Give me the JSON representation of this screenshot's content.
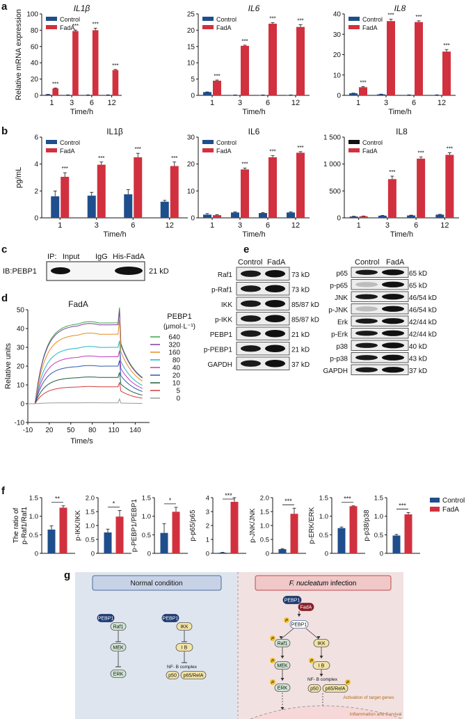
{
  "colors": {
    "control": "#1f4e8c",
    "fada": "#d1313f",
    "black": "#111111"
  },
  "panel_labels": {
    "a": "a",
    "b": "b",
    "c": "c",
    "d": "d",
    "e": "e",
    "f": "f",
    "g": "g"
  },
  "time_label": "Time/h",
  "sig": "***",
  "chart_data": [
    {
      "id": "a1",
      "type": "bar",
      "title": "IL1β",
      "title_italic": true,
      "ylabel": "Relative mRNA expression",
      "xlabel": "Time/h",
      "categories": [
        "1",
        "3",
        "6",
        "12"
      ],
      "ylim": [
        0,
        100
      ],
      "yticks": [
        "0",
        "20",
        "40",
        "60",
        "80",
        "100"
      ],
      "legend": [
        "Control",
        "FadA"
      ],
      "series": [
        {
          "name": "Control",
          "values": [
            1,
            0.5,
            0.5,
            0.5
          ],
          "err": [
            0.2,
            0.1,
            0.1,
            0.1
          ]
        },
        {
          "name": "FadA",
          "values": [
            8.5,
            79,
            80,
            31
          ],
          "err": [
            0.6,
            1.2,
            2.5,
            0.8
          ]
        }
      ],
      "sig": [
        "***",
        "***",
        "***",
        "***"
      ]
    },
    {
      "id": "a2",
      "type": "bar",
      "title": "IL6",
      "title_italic": true,
      "xlabel": "Time/h",
      "categories": [
        "1",
        "3",
        "6",
        "12"
      ],
      "ylim": [
        0,
        25
      ],
      "yticks": [
        "0",
        "5",
        "10",
        "15",
        "20",
        "25"
      ],
      "legend": [
        "Control",
        "FadA"
      ],
      "series": [
        {
          "name": "Control",
          "values": [
            1,
            0.1,
            0.1,
            0.1
          ],
          "err": [
            0.05,
            0.02,
            0.02,
            0.02
          ]
        },
        {
          "name": "FadA",
          "values": [
            4.5,
            15.2,
            22,
            21
          ],
          "err": [
            0.2,
            0.2,
            0.3,
            0.7
          ]
        }
      ],
      "sig": [
        "***",
        "***",
        "***",
        "***"
      ]
    },
    {
      "id": "a3",
      "type": "bar",
      "title": "IL8",
      "title_italic": true,
      "xlabel": "Time/h",
      "categories": [
        "1",
        "3",
        "6",
        "12"
      ],
      "ylim": [
        0,
        40
      ],
      "yticks": [
        "0",
        "10",
        "20",
        "30",
        "40"
      ],
      "legend": [
        "Control",
        "FadA"
      ],
      "series": [
        {
          "name": "Control",
          "values": [
            1,
            0.5,
            0.2,
            0.2
          ],
          "err": [
            0.1,
            0.1,
            0.05,
            0.05
          ]
        },
        {
          "name": "FadA",
          "values": [
            4,
            36.5,
            36,
            21.5
          ],
          "err": [
            0.3,
            0.9,
            0.6,
            1.0
          ]
        }
      ],
      "sig": [
        "***",
        "***",
        "***",
        "***"
      ]
    },
    {
      "id": "b1",
      "type": "bar",
      "title": "IL1β",
      "ylabel": "pg/mL",
      "xlabel": "Time/h",
      "categories": [
        "1",
        "3",
        "6",
        "12"
      ],
      "ylim": [
        0,
        6
      ],
      "yticks": [
        "0",
        "2",
        "4",
        "6"
      ],
      "legend": [
        "Control",
        "FadA"
      ],
      "series": [
        {
          "name": "Control",
          "values": [
            1.6,
            1.65,
            1.75,
            1.2
          ],
          "err": [
            0.4,
            0.25,
            0.35,
            0.1
          ]
        },
        {
          "name": "FadA",
          "values": [
            3.05,
            3.95,
            4.5,
            3.85
          ],
          "err": [
            0.3,
            0.2,
            0.3,
            0.3
          ]
        }
      ],
      "sig": [
        "***",
        "***",
        "***",
        "***"
      ]
    },
    {
      "id": "b2",
      "type": "bar",
      "title": "IL6",
      "xlabel": "Time/h",
      "categories": [
        "1",
        "3",
        "6",
        "12"
      ],
      "ylim": [
        0,
        30
      ],
      "yticks": [
        "0",
        "10",
        "20",
        "30"
      ],
      "legend": [
        "Control",
        "FadA"
      ],
      "series": [
        {
          "name": "Control",
          "values": [
            1.2,
            2.0,
            1.8,
            2.0
          ],
          "err": [
            0.4,
            0.2,
            0.2,
            0.2
          ]
        },
        {
          "name": "FadA",
          "values": [
            1.0,
            18,
            22.5,
            24.2
          ],
          "err": [
            0.2,
            0.5,
            0.6,
            0.4
          ]
        }
      ],
      "sig": [
        "",
        "***",
        "***",
        "***"
      ]
    },
    {
      "id": "b3",
      "type": "bar",
      "title": "IL8",
      "xlabel": "Time/h",
      "categories": [
        "1",
        "3",
        "6",
        "12"
      ],
      "ylim": [
        0,
        1500
      ],
      "yticks": [
        "0",
        "500",
        "1 000",
        "1 500"
      ],
      "legend": [
        "Control",
        "FadA"
      ],
      "legend_black": true,
      "series": [
        {
          "name": "Control",
          "values": [
            25,
            40,
            45,
            60
          ],
          "err": [
            5,
            5,
            5,
            5
          ]
        },
        {
          "name": "FadA",
          "values": [
            30,
            720,
            1100,
            1170
          ],
          "err": [
            5,
            55,
            30,
            40
          ]
        }
      ],
      "sig": [
        "",
        "***",
        "***",
        "***"
      ]
    },
    {
      "id": "d",
      "type": "line",
      "title": "FadA",
      "ylabel": "Relative units",
      "xlabel": "Time/s",
      "xlim": [
        -10,
        160
      ],
      "ylim": [
        -10,
        50
      ],
      "xticks": [
        "-10",
        "20",
        "50",
        "80",
        "110",
        "140"
      ],
      "yticks": [
        "-10",
        "0",
        "10",
        "20",
        "30",
        "40",
        "50"
      ],
      "legend_title": "PEBP1",
      "legend_unit": "(μmol·L⁻¹)",
      "series": [
        {
          "name": "640",
          "plateau": 43,
          "color": "#3aa348"
        },
        {
          "name": "320",
          "plateau": 42,
          "color": "#7a3fa0"
        },
        {
          "name": "160",
          "plateau": 37,
          "color": "#e88a1a"
        },
        {
          "name": "80",
          "plateau": 30,
          "color": "#1fb5c9"
        },
        {
          "name": "40",
          "plateau": 25,
          "color": "#c43ab8"
        },
        {
          "name": "20",
          "plateau": 20,
          "color": "#2f56b0"
        },
        {
          "name": "10",
          "plateau": 14,
          "color": "#1c5c3a"
        },
        {
          "name": "5",
          "plateau": 9,
          "color": "#d43a3a"
        },
        {
          "name": "0",
          "plateau": 0.5,
          "color": "#9a9a9a"
        }
      ]
    },
    {
      "id": "f1",
      "type": "bar",
      "ylabel": "The ratio of p-Raf1/Raf1",
      "ylim": [
        0,
        1.5
      ],
      "yticks": [
        "0",
        "0.5",
        "1.0",
        "1.5"
      ],
      "values": [
        0.64,
        1.23
      ],
      "err": [
        0.1,
        0.05
      ],
      "sig": "**"
    },
    {
      "id": "f2",
      "type": "bar",
      "ylabel": "p-IKK/IKK",
      "ylim": [
        0,
        2.0
      ],
      "yticks": [
        "0",
        "0.5",
        "1.0",
        "1.5",
        "2.0"
      ],
      "values": [
        0.75,
        1.32
      ],
      "err": [
        0.12,
        0.22
      ],
      "sig": "*"
    },
    {
      "id": "f3",
      "type": "bar",
      "ylabel": "p-PEBP1/PEBP1",
      "ylim": [
        0,
        1.5
      ],
      "yticks": [
        "0",
        "0.5",
        "1.0",
        "1.5"
      ],
      "values": [
        0.55,
        1.12
      ],
      "err": [
        0.25,
        0.12
      ],
      "sig": "*"
    },
    {
      "id": "f4",
      "type": "bar",
      "ylabel": "p-p65/p65",
      "ylim": [
        0,
        4
      ],
      "yticks": [
        "0",
        "1",
        "2",
        "3",
        "4"
      ],
      "values": [
        0.05,
        3.7
      ],
      "err": [
        0.02,
        0.3
      ],
      "sig": "***"
    },
    {
      "id": "f5",
      "type": "bar",
      "ylabel": "p-JNK/JNK",
      "ylim": [
        0,
        2.0
      ],
      "yticks": [
        "0",
        "0.5",
        "1.0",
        "1.5",
        "2.0"
      ],
      "values": [
        0.15,
        1.42
      ],
      "err": [
        0.02,
        0.2
      ],
      "sig": "***"
    },
    {
      "id": "f6",
      "type": "bar",
      "ylabel": "p-ERK/ERK",
      "ylim": [
        0,
        1.5
      ],
      "yticks": [
        "0",
        "0.5",
        "1.0",
        "1.5"
      ],
      "values": [
        0.68,
        1.27
      ],
      "err": [
        0.03,
        0.01
      ],
      "sig": "***"
    },
    {
      "id": "f7",
      "type": "bar",
      "ylabel": "p-p38/p38",
      "ylim": [
        0,
        1.5
      ],
      "yticks": [
        "0",
        "0.5",
        "1.0",
        "1.5"
      ],
      "values": [
        0.48,
        1.05
      ],
      "err": [
        0.03,
        0.05
      ],
      "sig": "***"
    }
  ],
  "f_legend": [
    "Control",
    "FadA"
  ],
  "blot_c": {
    "ip": "IP:",
    "cols": [
      "Input",
      "IgG",
      "His-FadA"
    ],
    "ib": "IB:PEBP1",
    "kd": "21 kD"
  },
  "blot_e": {
    "cols": [
      "Control",
      "FadA"
    ],
    "left": [
      {
        "label": "Raf1",
        "kd": "73 kD"
      },
      {
        "label": "p-Raf1",
        "kd": "73 kD"
      },
      {
        "label": "IKK",
        "kd": "85/87 kD"
      },
      {
        "label": "p-IKK",
        "kd": "85/87 kD"
      },
      {
        "label": "PEBP1",
        "kd": "21 kD"
      },
      {
        "label": "p-PEBP1",
        "kd": "21 kD"
      },
      {
        "label": "GAPDH",
        "kd": "37 kD"
      }
    ],
    "right": [
      {
        "label": "p65",
        "kd": "65 kD"
      },
      {
        "label": "p-p65",
        "kd": "65 kD"
      },
      {
        "label": "JNK",
        "kd": "46/54 kD"
      },
      {
        "label": "p-JNK",
        "kd": "46/54 kD"
      },
      {
        "label": "Erk",
        "kd": "42/44 kD"
      },
      {
        "label": "p-Erk",
        "kd": "42/44 kD"
      },
      {
        "label": "p38",
        "kd": "40 kD"
      },
      {
        "label": "p-p38",
        "kd": "43 kD"
      },
      {
        "label": "GAPDH",
        "kd": "37 kD"
      }
    ]
  },
  "diagram": {
    "normal": "Normal condition",
    "infection_italic": "F. nucleatum",
    "infection_rest": " infection",
    "PEBP1": "PEBP1",
    "Raf1": "Raf1",
    "MEK": "MEK",
    "ERK": "ERK",
    "IKK": "IKK",
    "IB": "I B",
    "nfkb": "NF- B complex",
    "p50": "p50",
    "p65": "p65/RelA",
    "FadA": "FadA",
    "P": "P",
    "activation": "Activation of target genes",
    "inflammation": "Inflammation and Survival"
  }
}
